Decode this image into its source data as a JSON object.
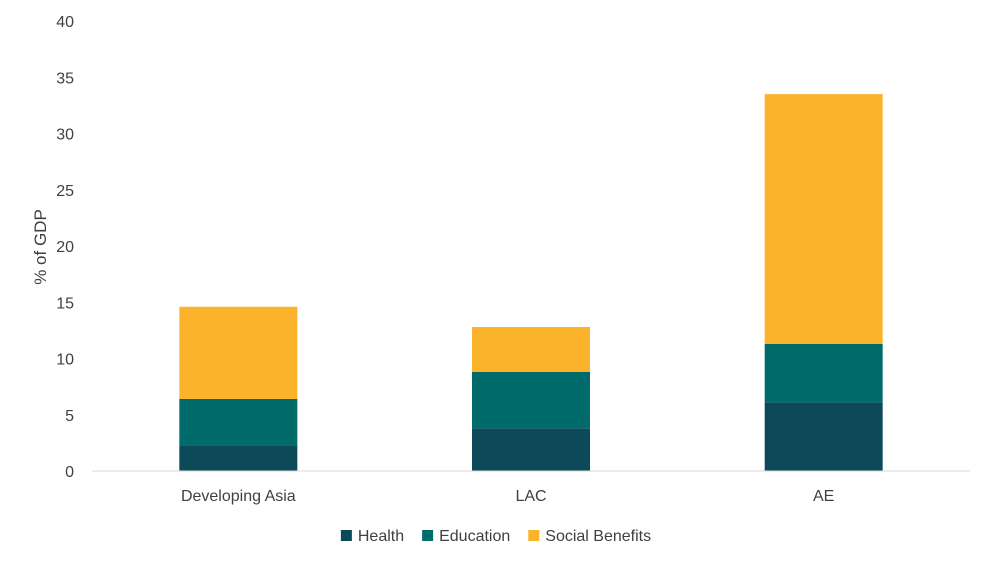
{
  "chart_data": {
    "type": "bar",
    "stacked": true,
    "title": "",
    "xlabel": "",
    "ylabel": "% of GDP",
    "ylim": [
      0,
      40
    ],
    "yticks": [
      0,
      5,
      10,
      15,
      20,
      25,
      30,
      35,
      40
    ],
    "grid": false,
    "legend": "bottom",
    "categories": [
      "Developing Asia",
      "LAC",
      "AE"
    ],
    "series": [
      {
        "name": "Health",
        "color": "#0c4a5a",
        "values": [
          2.3,
          3.8,
          6.1
        ]
      },
      {
        "name": "Education",
        "color": "#006b6b",
        "values": [
          4.1,
          5.0,
          5.2
        ]
      },
      {
        "name": "Social Benefits",
        "color": "#fbb32b",
        "values": [
          8.2,
          4.0,
          22.2
        ]
      }
    ]
  }
}
